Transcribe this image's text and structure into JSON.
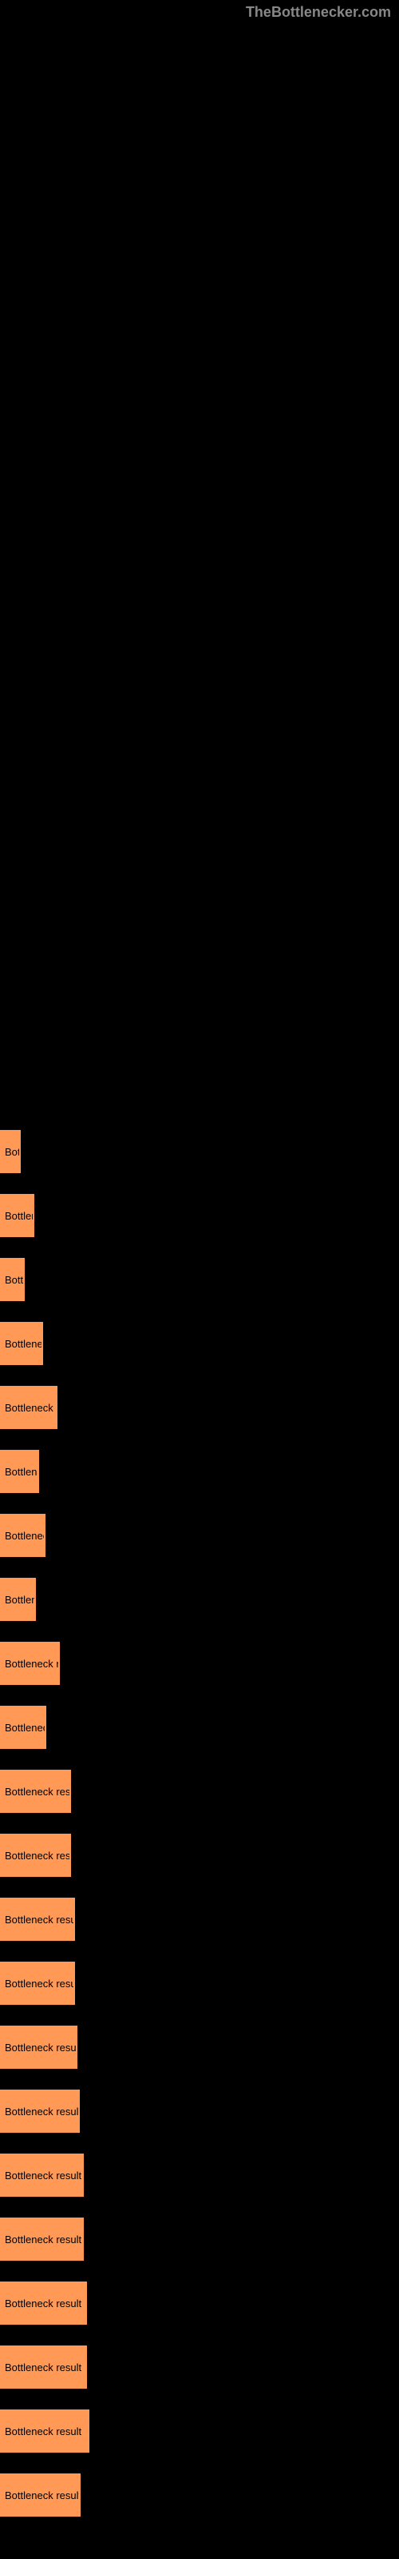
{
  "watermark": "TheBottlenecker.com",
  "chart": {
    "type": "bar",
    "background_color": "#000000",
    "bar_color": "#ff9955",
    "bar_border_color": "#ff9955",
    "text_color": "#000000",
    "max_bar_width": 500,
    "bars": [
      {
        "label": "Bot",
        "width": 26
      },
      {
        "label": "Bottlene",
        "width": 43
      },
      {
        "label": "Bottle",
        "width": 31
      },
      {
        "label": "Bottleneck",
        "width": 54
      },
      {
        "label": "Bottleneck re",
        "width": 72
      },
      {
        "label": "Bottlenec",
        "width": 49
      },
      {
        "label": "Bottleneck",
        "width": 57
      },
      {
        "label": "Bottlene",
        "width": 45
      },
      {
        "label": "Bottleneck res",
        "width": 75
      },
      {
        "label": "Bottleneck",
        "width": 58
      },
      {
        "label": "Bottleneck result",
        "width": 89
      },
      {
        "label": "Bottleneck result",
        "width": 89
      },
      {
        "label": "Bottleneck result",
        "width": 94
      },
      {
        "label": "Bottleneck result",
        "width": 94
      },
      {
        "label": "Bottleneck result",
        "width": 97
      },
      {
        "label": "Bottleneck result",
        "width": 100
      },
      {
        "label": "Bottleneck result",
        "width": 105
      },
      {
        "label": "Bottleneck result",
        "width": 105
      },
      {
        "label": "Bottleneck result",
        "width": 109
      },
      {
        "label": "Bottleneck result",
        "width": 109
      },
      {
        "label": "Bottleneck result",
        "width": 112
      },
      {
        "label": "Bottleneck result",
        "width": 101
      }
    ]
  }
}
